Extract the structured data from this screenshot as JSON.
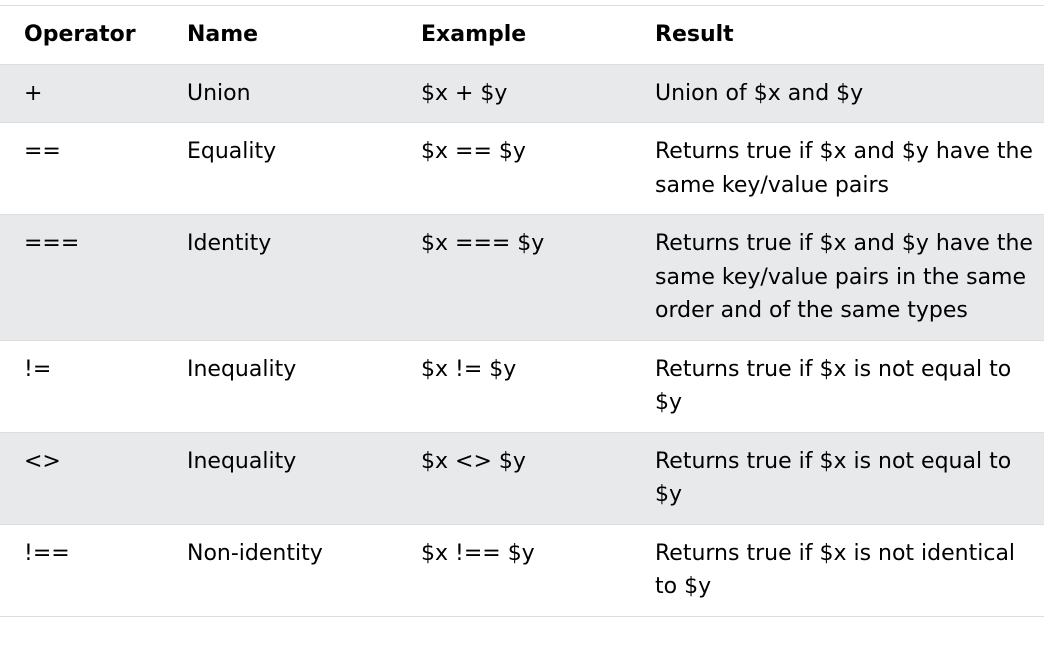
{
  "table": {
    "headers": [
      "Operator",
      "Name",
      "Example",
      "Result"
    ],
    "rows": [
      {
        "operator": "+",
        "name": "Union",
        "example": "$x + $y",
        "result": "Union of $x and $y"
      },
      {
        "operator": "==",
        "name": "Equality",
        "example": "$x == $y",
        "result": "Returns true if $x and $y have the same key/value pairs"
      },
      {
        "operator": "===",
        "name": "Identity",
        "example": "$x === $y",
        "result": "Returns true if $x and $y have the same key/value pairs in the same order and of the same types"
      },
      {
        "operator": "!=",
        "name": "Inequality",
        "example": "$x != $y",
        "result": "Returns true if $x is not equal to $y"
      },
      {
        "operator": "<>",
        "name": "Inequality",
        "example": "$x <> $y",
        "result": "Returns true if $x is not equal to $y"
      },
      {
        "operator": "!==",
        "name": "Non-identity",
        "example": "$x !== $y",
        "result": "Returns true if $x is not identical to $y"
      }
    ]
  },
  "colors": {
    "stripe": "#e7e9eb",
    "border": "#dddddd",
    "text": "#000000"
  }
}
